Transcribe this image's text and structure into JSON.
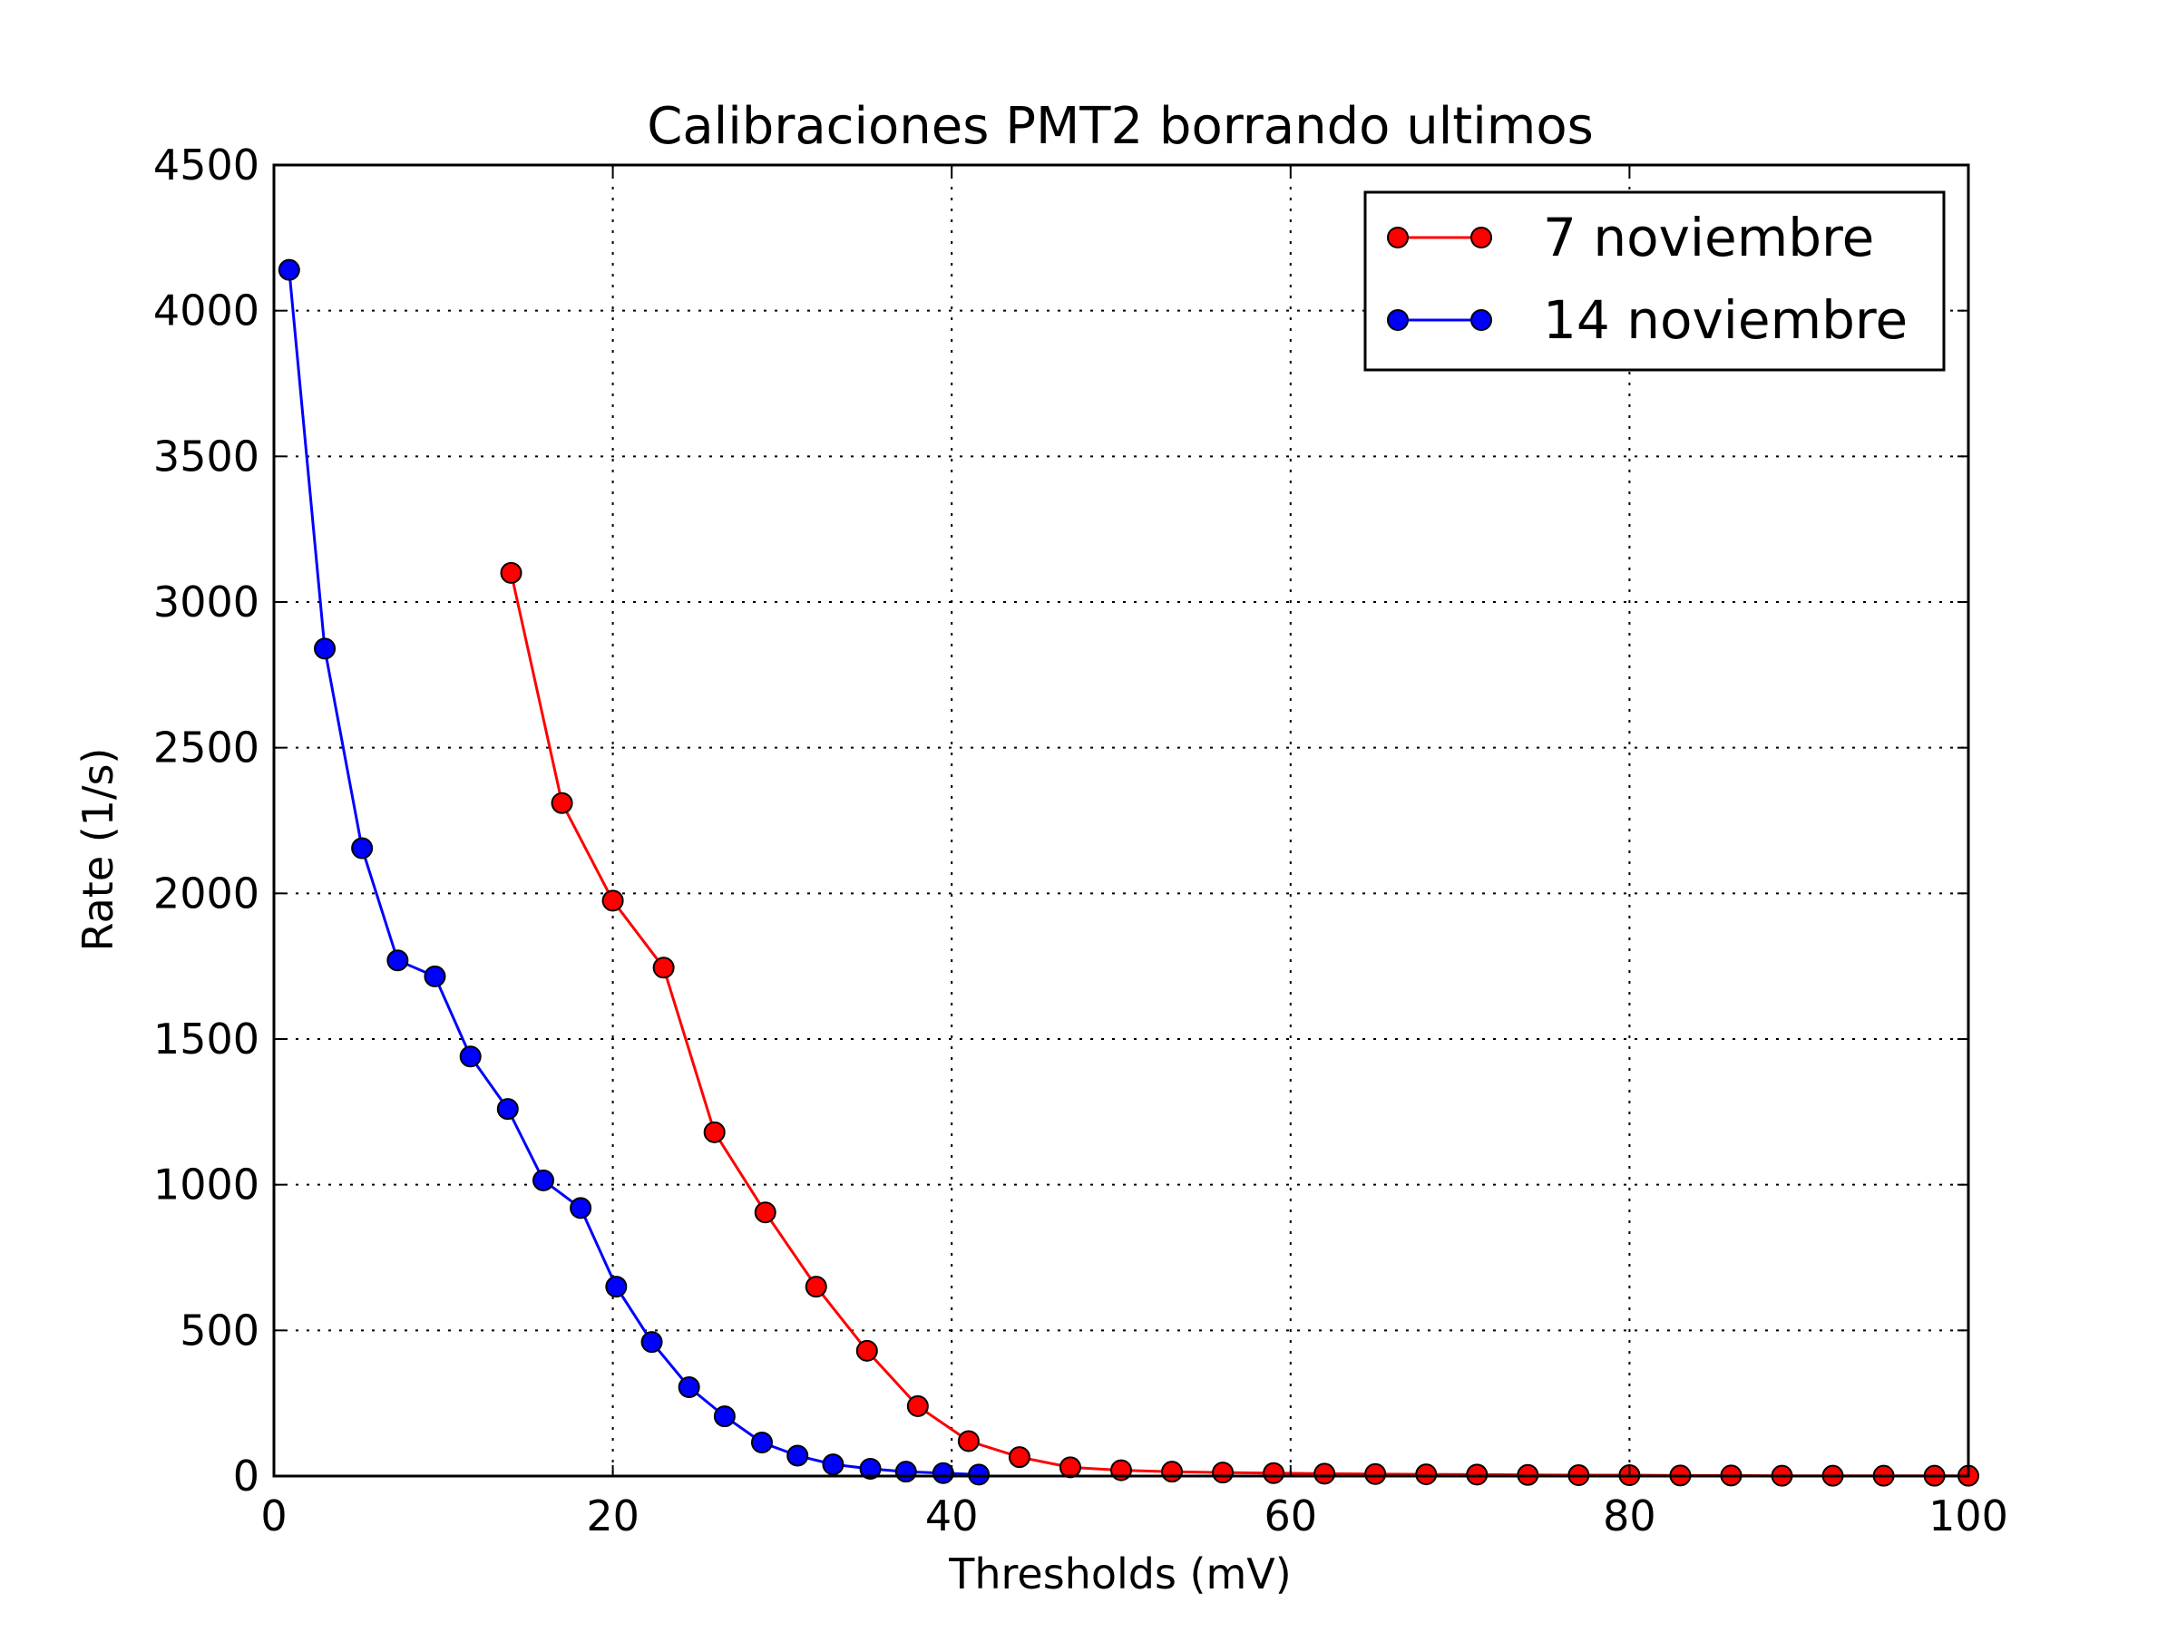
{
  "chart_data": {
    "type": "line",
    "title": "Calibraciones PMT2 borrando ultimos",
    "xlabel": "Thresholds (mV)",
    "ylabel": "Rate (1/s)",
    "xlim": [
      0,
      100
    ],
    "ylim": [
      0,
      4500
    ],
    "xticks": [
      0,
      20,
      40,
      60,
      80,
      100
    ],
    "yticks": [
      0,
      500,
      1000,
      1500,
      2000,
      2500,
      3000,
      3500,
      4000,
      4500
    ],
    "xtick_labels": [
      "0",
      "20",
      "40",
      "60",
      "80",
      "100"
    ],
    "ytick_labels": [
      "0",
      "500",
      "1000",
      "1500",
      "2000",
      "2500",
      "3000",
      "3500",
      "4000",
      "4500"
    ],
    "grid": true,
    "legend_position": "top-right",
    "series": [
      {
        "name": "7 noviembre",
        "color": "#ff0000",
        "marker": "circle",
        "x": [
          14,
          17,
          20,
          23,
          26,
          29,
          32,
          35,
          38,
          41,
          44,
          47,
          50,
          53,
          56,
          59,
          62,
          65,
          68,
          71,
          74,
          77,
          80,
          83,
          86,
          89,
          92,
          95,
          98,
          100
        ],
        "y": [
          3100,
          2310,
          1975,
          1745,
          1180,
          905,
          650,
          430,
          240,
          120,
          65,
          30,
          20,
          15,
          12,
          10,
          8,
          7,
          6,
          5,
          4,
          3,
          3,
          2,
          2,
          1,
          1,
          1,
          1,
          1
        ]
      },
      {
        "name": "14 noviembre",
        "color": "#0000ff",
        "marker": "circle",
        "x": [
          0.9,
          3.0,
          5.2,
          7.3,
          9.5,
          11.6,
          13.8,
          15.9,
          18.1,
          20.2,
          22.3,
          24.5,
          26.6,
          28.8,
          30.9,
          33.0,
          35.2,
          37.3,
          39.5,
          41.6
        ],
        "y": [
          4140,
          2840,
          2155,
          1770,
          1715,
          1440,
          1260,
          1015,
          920,
          650,
          460,
          305,
          205,
          115,
          70,
          40,
          25,
          15,
          10,
          5
        ]
      }
    ]
  }
}
